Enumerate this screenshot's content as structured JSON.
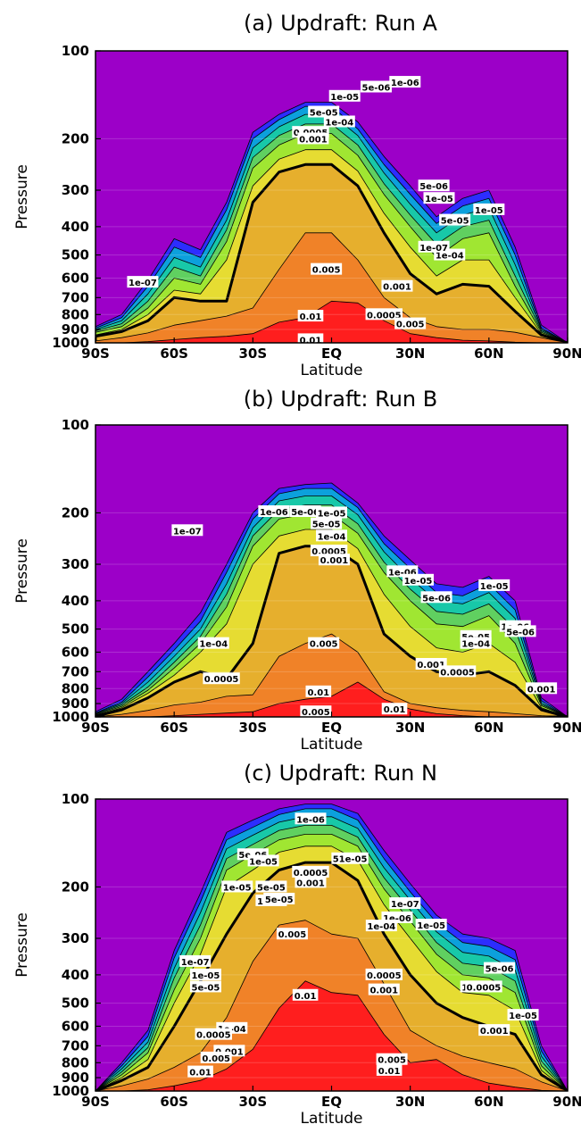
{
  "chart_data": [
    {
      "type": "contour",
      "title": "(a) Updraft: Run A",
      "xlabel": "Latitude",
      "ylabel": "Pressure",
      "x_ticks": [
        "90S",
        "60S",
        "30S",
        "EQ",
        "30N",
        "60N",
        "90N"
      ],
      "y_ticks": [
        "100",
        "200",
        "300",
        "400",
        "500",
        "600",
        "700",
        "800",
        "900",
        "1000"
      ],
      "xlim": [
        -90,
        90
      ],
      "ylim": [
        1000,
        100
      ],
      "y_scale": "log",
      "levels": [
        1e-07,
        1e-06,
        5e-06,
        1e-05,
        5e-05,
        0.0001,
        0.0005,
        0.001,
        0.005,
        0.01
      ],
      "colors": [
        "#9c00c8",
        "#2d2dff",
        "#0ca0dc",
        "#18c8a8",
        "#60d060",
        "#a0e632",
        "#e6dc32",
        "#e6af2d",
        "#f08228",
        "#ff1e1e"
      ],
      "bold_level": 0.001,
      "lat": [
        -90,
        -80,
        -70,
        -60,
        -50,
        -40,
        -30,
        -20,
        -10,
        0,
        10,
        20,
        30,
        40,
        50,
        60,
        70,
        80,
        90
      ],
      "top_pressure": {
        "1e-07": [
          880,
          800,
          610,
          440,
          480,
          330,
          190,
          165,
          150,
          150,
          175,
          230,
          290,
          370,
          320,
          300,
          470,
          870,
          1000
        ],
        "1e-06": [
          890,
          820,
          640,
          470,
          510,
          350,
          200,
          172,
          155,
          155,
          185,
          245,
          310,
          390,
          340,
          320,
          500,
          890,
          1000
        ],
        "1e-05": [
          900,
          840,
          680,
          510,
          550,
          380,
          215,
          182,
          165,
          165,
          195,
          262,
          335,
          420,
          365,
          345,
          540,
          900,
          1000
        ],
        "5e-05": [
          910,
          860,
          720,
          550,
          590,
          410,
          232,
          195,
          178,
          178,
          210,
          285,
          365,
          460,
          400,
          380,
          590,
          910,
          1000
        ],
        "0.0001": [
          920,
          880,
          760,
          600,
          630,
          450,
          252,
          210,
          192,
          192,
          228,
          310,
          400,
          510,
          440,
          420,
          640,
          920,
          1000
        ],
        "0.0005": [
          940,
          900,
          800,
          660,
          680,
          520,
          290,
          235,
          218,
          218,
          258,
          360,
          470,
          590,
          520,
          520,
          700,
          930,
          1000
        ],
        "0.001": [
          950,
          915,
          840,
          700,
          720,
          720,
          330,
          260,
          245,
          245,
          290,
          420,
          580,
          680,
          630,
          640,
          780,
          940,
          1000
        ],
        "0.005": [
          985,
          960,
          925,
          870,
          840,
          810,
          760,
          560,
          420,
          420,
          520,
          700,
          820,
          880,
          900,
          900,
          920,
          960,
          1000
        ],
        "0.01": [
          1000,
          1000,
          990,
          975,
          960,
          950,
          930,
          850,
          820,
          720,
          730,
          840,
          930,
          960,
          980,
          985,
          995,
          1000,
          1000
        ]
      },
      "contour_labels": [
        "1e-07",
        "1e-06",
        "5e-06",
        "1e-05",
        "5e-05",
        "1e-04",
        "0.0005",
        "0.001",
        "0.005",
        "0.01",
        "0.0005",
        "0.001",
        "0.005",
        "0.01",
        "1e-05",
        "5e-05",
        "1e-04",
        "1e-07",
        "5e-06",
        "1e-05"
      ]
    },
    {
      "type": "contour",
      "title": "(b) Updraft: Run B",
      "xlabel": "Latitude",
      "ylabel": "Pressure",
      "x_ticks": [
        "90S",
        "60S",
        "30S",
        "EQ",
        "30N",
        "60N",
        "90N"
      ],
      "y_ticks": [
        "100",
        "200",
        "300",
        "400",
        "500",
        "600",
        "700",
        "800",
        "900",
        "1000"
      ],
      "xlim": [
        -90,
        90
      ],
      "ylim": [
        1000,
        100
      ],
      "y_scale": "log",
      "levels": [
        1e-07,
        1e-06,
        5e-06,
        1e-05,
        5e-05,
        0.0001,
        0.0005,
        0.001,
        0.005,
        0.01
      ],
      "colors": [
        "#9c00c8",
        "#2d2dff",
        "#0ca0dc",
        "#18c8a8",
        "#60d060",
        "#a0e632",
        "#e6dc32",
        "#e6af2d",
        "#f08228",
        "#ff1e1e"
      ],
      "bold_level": 0.001,
      "lat": [
        -90,
        -80,
        -70,
        -60,
        -50,
        -40,
        -30,
        -20,
        -10,
        0,
        10,
        20,
        30,
        40,
        50,
        60,
        70,
        80,
        90
      ],
      "top_pressure": {
        "1e-07": [
          960,
          870,
          700,
          560,
          440,
          300,
          200,
          165,
          160,
          158,
          185,
          240,
          290,
          350,
          360,
          330,
          400,
          860,
          1000
        ],
        "1e-06": [
          970,
          890,
          730,
          590,
          470,
          320,
          210,
          172,
          165,
          165,
          192,
          255,
          310,
          375,
          385,
          350,
          430,
          880,
          1000
        ],
        "1e-05": [
          975,
          900,
          760,
          620,
          500,
          350,
          225,
          182,
          175,
          175,
          203,
          272,
          335,
          400,
          410,
          375,
          460,
          895,
          1000
        ],
        "5e-05": [
          980,
          910,
          790,
          650,
          530,
          380,
          240,
          195,
          188,
          188,
          218,
          295,
          365,
          435,
          445,
          410,
          500,
          905,
          1000
        ],
        "0.0001": [
          985,
          920,
          810,
          680,
          560,
          420,
          260,
          210,
          202,
          202,
          235,
          320,
          400,
          480,
          490,
          450,
          560,
          915,
          1000
        ],
        "0.0005": [
          990,
          930,
          830,
          720,
          600,
          480,
          300,
          240,
          228,
          228,
          265,
          380,
          490,
          580,
          600,
          560,
          650,
          930,
          1000
        ],
        "0.001": [
          995,
          945,
          860,
          760,
          700,
          740,
          560,
          275,
          260,
          260,
          300,
          520,
          620,
          700,
          720,
          700,
          780,
          945,
          1000
        ],
        "0.005": [
          1000,
          980,
          950,
          910,
          890,
          850,
          840,
          620,
          560,
          520,
          600,
          820,
          900,
          930,
          950,
          960,
          975,
          990,
          1000
        ],
        "0.01": [
          1000,
          1000,
          1000,
          990,
          980,
          970,
          960,
          900,
          870,
          850,
          760,
          870,
          940,
          975,
          990,
          1000,
          1000,
          1000,
          1000
        ]
      },
      "contour_labels": [
        "1e-07",
        "1e-06",
        "5e-06",
        "1e-05",
        "5e-05",
        "1e-04",
        "0.0005",
        "0.001",
        "0.005",
        "0.01",
        "0.005",
        "0.01",
        "1e-06",
        "1e-05",
        "5e-06",
        "5e-05",
        "1e-04",
        "0.001",
        "0.0005",
        "0.001",
        "1e-06",
        "5e-06",
        "1e-05",
        "1e-04",
        "0.0005"
      ]
    },
    {
      "type": "contour",
      "title": "(c) Updraft: Run N",
      "xlabel": "Latitude",
      "ylabel": "Pressure",
      "x_ticks": [
        "90S",
        "60S",
        "30S",
        "EQ",
        "30N",
        "60N",
        "90N"
      ],
      "y_ticks": [
        "100",
        "200",
        "300",
        "400",
        "500",
        "600",
        "700",
        "800",
        "900",
        "1000"
      ],
      "xlim": [
        -90,
        90
      ],
      "ylim": [
        1000,
        100
      ],
      "y_scale": "log",
      "levels": [
        1e-07,
        1e-06,
        5e-06,
        1e-05,
        5e-05,
        0.0001,
        0.0005,
        0.001,
        0.005,
        0.01
      ],
      "colors": [
        "#9c00c8",
        "#2d2dff",
        "#0ca0dc",
        "#18c8a8",
        "#60d060",
        "#a0e632",
        "#e6dc32",
        "#e6af2d",
        "#f08228",
        "#ff1e1e"
      ],
      "bold_level": 0.001,
      "lat": [
        -90,
        -80,
        -70,
        -60,
        -50,
        -40,
        -30,
        -20,
        -10,
        0,
        10,
        20,
        30,
        40,
        50,
        60,
        70,
        80,
        90
      ],
      "top_pressure": {
        "1e-07": [
          1000,
          800,
          620,
          330,
          210,
          130,
          118,
          108,
          104,
          104,
          112,
          150,
          195,
          250,
          290,
          300,
          330,
          700,
          1000
        ],
        "1e-06": [
          1000,
          820,
          650,
          350,
          225,
          138,
          125,
          113,
          108,
          108,
          118,
          160,
          208,
          265,
          310,
          320,
          355,
          730,
          1000
        ],
        "1e-05": [
          1000,
          840,
          680,
          380,
          245,
          148,
          133,
          120,
          115,
          115,
          126,
          172,
          222,
          285,
          335,
          345,
          385,
          760,
          1000
        ],
        "5e-05": [
          1000,
          860,
          710,
          410,
          270,
          160,
          143,
          128,
          123,
          123,
          135,
          186,
          240,
          310,
          365,
          375,
          420,
          790,
          1000
        ],
        "0.0001": [
          1000,
          880,
          740,
          450,
          300,
          175,
          155,
          138,
          132,
          132,
          145,
          203,
          262,
          340,
          400,
          410,
          460,
          820,
          1000
        ],
        "0.0005": [
          1000,
          900,
          780,
          500,
          340,
          200,
          175,
          152,
          145,
          145,
          162,
          230,
          300,
          390,
          460,
          470,
          530,
          850,
          1000
        ],
        "0.001": [
          1000,
          920,
          830,
          600,
          420,
          290,
          210,
          175,
          165,
          165,
          190,
          290,
          400,
          500,
          560,
          600,
          640,
          880,
          1000
        ],
        "0.005": [
          1000,
          960,
          910,
          830,
          740,
          560,
          360,
          270,
          260,
          290,
          300,
          430,
          620,
          700,
          760,
          800,
          840,
          930,
          1000
        ],
        "0.01": [
          1000,
          1000,
          990,
          960,
          920,
          840,
          720,
          520,
          420,
          460,
          470,
          640,
          800,
          780,
          880,
          940,
          970,
          995,
          1000
        ]
      },
      "contour_labels": [
        "1e-06",
        "51e-05",
        "0.0005",
        "0.001",
        "5e-06",
        "1e-05",
        "1e-05",
        "5e-05",
        "1e-04",
        "0.005",
        "0.01",
        "1e-07",
        "1e-05",
        "5e-05",
        "1e-04",
        "0.0005",
        "0.001",
        "0.005",
        "0.01",
        "1e-07",
        "1e-06",
        "1e-04",
        "1e-05",
        "0.0005",
        "0.001",
        "5e-06",
        "1e-04",
        "0.0005",
        "5e-05",
        "0.001",
        "1e-05",
        "0.005",
        "0.01"
      ]
    }
  ]
}
